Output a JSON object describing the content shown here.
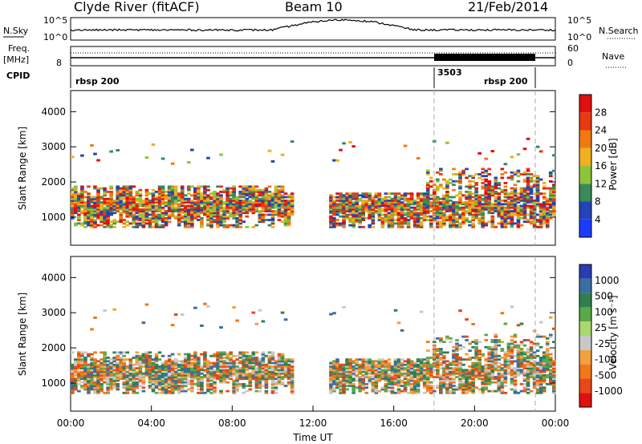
{
  "header": {
    "station": "Clyde River (fitACF)",
    "beam": "Beam 10",
    "date": "21/Feb/2014"
  },
  "summary_panels": {
    "nsky_label": "N.Sky",
    "nsky_ticks": [
      "10^5",
      "10^0"
    ],
    "nsearch_label": "N.Search",
    "nsearch_ticks": [
      "10^5",
      "10^0"
    ],
    "freq_label": "Freq.",
    "freq_unit": "[MHz]",
    "freq_ticks": [
      "8"
    ],
    "nave_label": "Nave",
    "nave_ticks": [
      "60",
      "0"
    ],
    "cpid_label": "CPID",
    "cpid_entries": [
      {
        "label": "rbsp 200",
        "start_hour": 0.1
      },
      {
        "label": "3503",
        "start_hour": 18.0
      },
      {
        "label": "rbsp 200",
        "start_hour": 23.0
      }
    ]
  },
  "chart_data": [
    {
      "type": "heatmap",
      "name": "power",
      "ylabel": "Slant Range [km]",
      "yticks": [
        "1000",
        "2000",
        "3000",
        "4000"
      ],
      "ylim": [
        200,
        4600
      ],
      "xlim": [
        0,
        24
      ],
      "colorbar": {
        "label": "Power [dB]",
        "ticks": [
          "4",
          "8",
          "12",
          "16",
          "20",
          "24",
          "28"
        ],
        "colors": [
          "#1a3cff",
          "#2344b8",
          "#3a8a5c",
          "#8ec43c",
          "#f0b020",
          "#f07a10",
          "#e83a10",
          "#e01010"
        ]
      },
      "dashed_markers_hours": [
        18.0,
        23.0
      ]
    },
    {
      "type": "heatmap",
      "name": "velocity",
      "ylabel": "Slant Range [km]",
      "yticks": [
        "1000",
        "2000",
        "3000",
        "4000"
      ],
      "ylim": [
        200,
        4600
      ],
      "xlim": [
        0,
        24
      ],
      "xlabel": "Time UT",
      "xticks": [
        "00:00",
        "04:00",
        "08:00",
        "12:00",
        "16:00",
        "20:00",
        "00:00"
      ],
      "colorbar": {
        "label": "Velocity [m s⁻¹]",
        "ticks": [
          "1000",
          "500",
          "100",
          "25",
          "-25",
          "-100",
          "-500",
          "-1000"
        ],
        "colors": [
          "#2a3cb0",
          "#3a6ea0",
          "#2f8050",
          "#5aa84a",
          "#a8d870",
          "#c8c8c8",
          "#f2a040",
          "#f07818",
          "#e84818",
          "#e01010"
        ]
      },
      "dashed_markers_hours": [
        18.0,
        23.0
      ]
    }
  ]
}
